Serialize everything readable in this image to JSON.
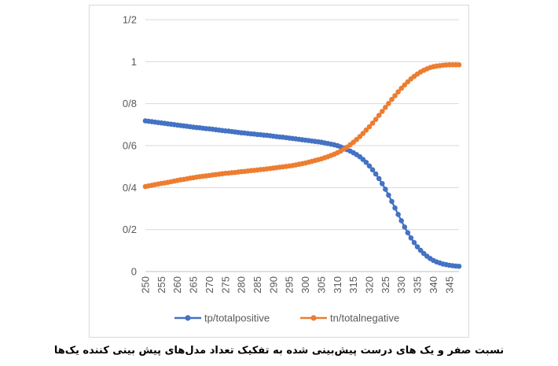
{
  "caption": "نسبت صفر و یک های درست پیش‌بینی شده به تفکیک تعداد مدل‌های پیش بینی کننده یک‌ها",
  "chart_data": {
    "type": "line",
    "x_start": 250,
    "x_end": 348,
    "x_step": 1,
    "x_tick_labels": [
      "250",
      "255",
      "260",
      "265",
      "270",
      "275",
      "280",
      "285",
      "290",
      "295",
      "300",
      "305",
      "310",
      "315",
      "320",
      "325",
      "330",
      "335",
      "340",
      "345"
    ],
    "y_tick_labels": [
      "0",
      "0/2",
      "0/4",
      "0/6",
      "0/8",
      "1",
      "1/2"
    ],
    "ylim": [
      0,
      1.2
    ],
    "grid": true,
    "legend_position": "bottom",
    "series": [
      {
        "name": "tp/totalpositive",
        "color": "#4472C4",
        "values": [
          0.718,
          0.716,
          0.714,
          0.712,
          0.71,
          0.708,
          0.706,
          0.704,
          0.702,
          0.7,
          0.698,
          0.696,
          0.694,
          0.692,
          0.69,
          0.688,
          0.686,
          0.685,
          0.683,
          0.681,
          0.68,
          0.678,
          0.676,
          0.674,
          0.672,
          0.67,
          0.669,
          0.667,
          0.665,
          0.663,
          0.661,
          0.66,
          0.658,
          0.656,
          0.655,
          0.653,
          0.652,
          0.65,
          0.649,
          0.647,
          0.645,
          0.643,
          0.641,
          0.64,
          0.638,
          0.636,
          0.634,
          0.632,
          0.63,
          0.628,
          0.626,
          0.624,
          0.622,
          0.62,
          0.618,
          0.616,
          0.613,
          0.61,
          0.607,
          0.604,
          0.6,
          0.594,
          0.588,
          0.581,
          0.574,
          0.566,
          0.557,
          0.547,
          0.534,
          0.52,
          0.503,
          0.485,
          0.465,
          0.443,
          0.419,
          0.392,
          0.364,
          0.334,
          0.303,
          0.272,
          0.242,
          0.212,
          0.185,
          0.16,
          0.138,
          0.118,
          0.101,
          0.086,
          0.073,
          0.062,
          0.053,
          0.046,
          0.041,
          0.036,
          0.033,
          0.03,
          0.028,
          0.026,
          0.025
        ]
      },
      {
        "name": "tn/totalnegative",
        "color": "#ED7D31",
        "values": [
          0.405,
          0.408,
          0.411,
          0.414,
          0.417,
          0.42,
          0.422,
          0.425,
          0.428,
          0.431,
          0.434,
          0.437,
          0.439,
          0.442,
          0.445,
          0.447,
          0.45,
          0.452,
          0.454,
          0.456,
          0.458,
          0.46,
          0.462,
          0.464,
          0.466,
          0.468,
          0.469,
          0.471,
          0.472,
          0.474,
          0.476,
          0.477,
          0.479,
          0.481,
          0.482,
          0.484,
          0.486,
          0.487,
          0.489,
          0.491,
          0.493,
          0.495,
          0.497,
          0.499,
          0.501,
          0.503,
          0.505,
          0.508,
          0.511,
          0.514,
          0.517,
          0.521,
          0.525,
          0.529,
          0.533,
          0.537,
          0.542,
          0.547,
          0.553,
          0.559,
          0.566,
          0.574,
          0.583,
          0.593,
          0.604,
          0.616,
          0.629,
          0.643,
          0.658,
          0.674,
          0.69,
          0.707,
          0.725,
          0.744,
          0.763,
          0.782,
          0.801,
          0.82,
          0.838,
          0.856,
          0.873,
          0.889,
          0.904,
          0.918,
          0.93,
          0.941,
          0.951,
          0.959,
          0.966,
          0.972,
          0.976,
          0.979,
          0.981,
          0.983,
          0.984,
          0.985,
          0.985,
          0.985,
          0.985
        ]
      }
    ]
  }
}
